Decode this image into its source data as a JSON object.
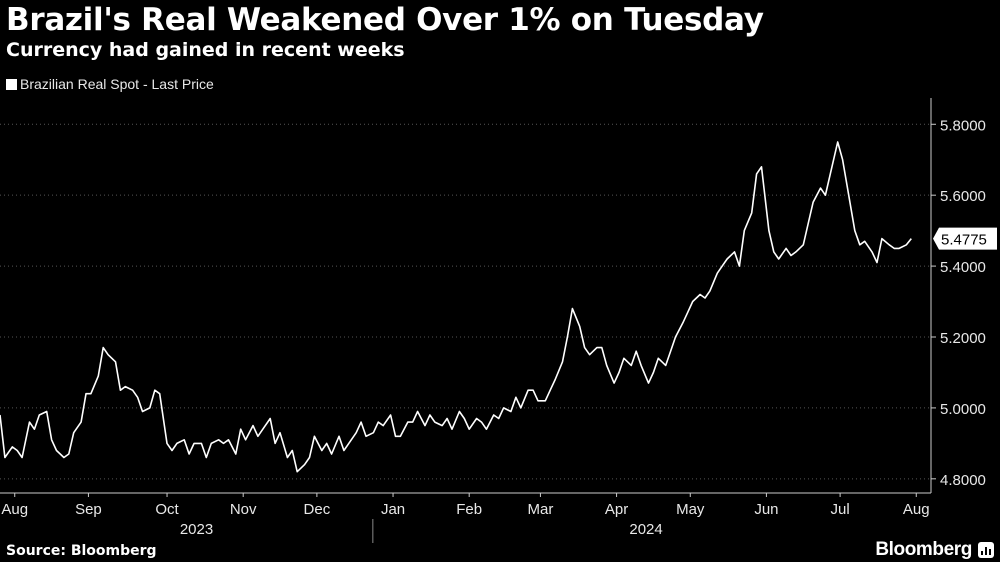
{
  "header": {
    "title": "Brazil's Real Weakened Over 1% on Tuesday",
    "subtitle": "Currency had gained in recent weeks"
  },
  "legend": {
    "label": "Brazilian Real Spot - Last Price"
  },
  "footer": {
    "source": "Source: Bloomberg",
    "brand": "Bloomberg"
  },
  "colors": {
    "background": "#000000",
    "line": "#ffffff",
    "grid": "#555555"
  },
  "chart_data": {
    "type": "line",
    "series": [
      {
        "name": "Brazilian Real Spot - Last Price",
        "x": [
          "2023-08-01",
          "2023-08-03",
          "2023-08-06",
          "2023-08-08",
          "2023-08-10",
          "2023-08-13",
          "2023-08-15",
          "2023-08-17",
          "2023-08-20",
          "2023-08-22",
          "2023-08-24",
          "2023-08-27",
          "2023-08-29",
          "2023-08-31",
          "2023-09-03",
          "2023-09-05",
          "2023-09-07",
          "2023-09-10",
          "2023-09-12",
          "2023-09-14",
          "2023-09-17",
          "2023-09-19",
          "2023-09-21",
          "2023-09-24",
          "2023-09-26",
          "2023-09-28",
          "2023-10-01",
          "2023-10-03",
          "2023-10-05",
          "2023-10-08",
          "2023-10-10",
          "2023-10-12",
          "2023-10-15",
          "2023-10-17",
          "2023-10-19",
          "2023-10-22",
          "2023-10-24",
          "2023-10-26",
          "2023-10-29",
          "2023-10-31",
          "2023-11-02",
          "2023-11-05",
          "2023-11-07",
          "2023-11-09",
          "2023-11-12",
          "2023-11-14",
          "2023-11-16",
          "2023-11-19",
          "2023-11-21",
          "2023-11-23",
          "2023-11-26",
          "2023-11-28",
          "2023-11-30",
          "2023-12-03",
          "2023-12-05",
          "2023-12-07",
          "2023-12-10",
          "2023-12-12",
          "2023-12-14",
          "2023-12-17",
          "2023-12-19",
          "2023-12-21",
          "2023-12-24",
          "2023-12-26",
          "2023-12-28",
          "2023-12-31",
          "2024-01-02",
          "2024-01-04",
          "2024-01-07",
          "2024-01-09",
          "2024-01-11",
          "2024-01-14",
          "2024-01-16",
          "2024-01-18",
          "2024-01-21",
          "2024-01-23",
          "2024-01-25",
          "2024-01-28",
          "2024-01-30",
          "2024-02-01",
          "2024-02-04",
          "2024-02-06",
          "2024-02-08",
          "2024-02-11",
          "2024-02-13",
          "2024-02-15",
          "2024-02-18",
          "2024-02-20",
          "2024-02-22",
          "2024-02-25",
          "2024-02-27",
          "2024-02-29",
          "2024-03-03",
          "2024-03-05",
          "2024-03-07",
          "2024-03-10",
          "2024-03-12",
          "2024-03-14",
          "2024-03-17",
          "2024-03-19",
          "2024-03-21",
          "2024-03-24",
          "2024-03-26",
          "2024-03-28",
          "2024-03-31",
          "2024-04-02",
          "2024-04-04",
          "2024-04-07",
          "2024-04-09",
          "2024-04-11",
          "2024-04-14",
          "2024-04-16",
          "2024-04-18",
          "2024-04-21",
          "2024-04-23",
          "2024-04-25",
          "2024-04-28",
          "2024-04-30",
          "2024-05-02",
          "2024-05-05",
          "2024-05-07",
          "2024-05-09",
          "2024-05-12",
          "2024-05-14",
          "2024-05-16",
          "2024-05-19",
          "2024-05-21",
          "2024-05-23",
          "2024-05-26",
          "2024-05-28",
          "2024-05-30",
          "2024-06-02",
          "2024-06-04",
          "2024-06-06",
          "2024-06-09",
          "2024-06-11",
          "2024-06-13",
          "2024-06-16",
          "2024-06-18",
          "2024-06-20",
          "2024-06-23",
          "2024-06-25",
          "2024-06-27",
          "2024-06-30",
          "2024-07-02",
          "2024-07-04",
          "2024-07-07",
          "2024-07-09",
          "2024-07-11",
          "2024-07-14",
          "2024-07-16",
          "2024-07-18",
          "2024-07-21",
          "2024-07-23",
          "2024-07-25",
          "2024-07-28",
          "2024-07-30",
          "2024-08-01",
          "2024-08-04",
          "2024-08-06"
        ],
        "y": [
          4.98,
          4.86,
          4.89,
          4.88,
          4.86,
          4.96,
          4.94,
          4.98,
          4.99,
          4.91,
          4.88,
          4.86,
          4.87,
          4.93,
          4.96,
          5.04,
          5.04,
          5.09,
          5.17,
          5.15,
          5.13,
          5.05,
          5.06,
          5.05,
          5.03,
          4.99,
          5.0,
          5.05,
          5.04,
          4.9,
          4.88,
          4.9,
          4.91,
          4.87,
          4.9,
          4.9,
          4.86,
          4.9,
          4.91,
          4.9,
          4.91,
          4.87,
          4.94,
          4.91,
          4.95,
          4.92,
          4.94,
          4.97,
          4.9,
          4.93,
          4.86,
          4.88,
          4.82,
          4.84,
          4.86,
          4.92,
          4.88,
          4.9,
          4.87,
          4.92,
          4.88,
          4.9,
          4.93,
          4.96,
          4.92,
          4.93,
          4.96,
          4.95,
          4.98,
          4.92,
          4.92,
          4.96,
          4.96,
          4.99,
          4.95,
          4.98,
          4.96,
          4.95,
          4.97,
          4.94,
          4.99,
          4.97,
          4.94,
          4.97,
          4.96,
          4.94,
          4.98,
          4.97,
          5.0,
          4.99,
          5.03,
          5.0,
          5.05,
          5.05,
          5.02,
          5.02,
          5.05,
          5.08,
          5.13,
          5.2,
          5.28,
          5.23,
          5.17,
          5.15,
          5.17,
          5.17,
          5.12,
          5.07,
          5.1,
          5.14,
          5.12,
          5.16,
          5.12,
          5.07,
          5.1,
          5.14,
          5.12,
          5.16,
          5.2,
          5.24,
          5.27,
          5.3,
          5.32,
          5.31,
          5.33,
          5.38,
          5.4,
          5.42,
          5.44,
          5.4,
          5.5,
          5.55,
          5.66,
          5.68,
          5.5,
          5.44,
          5.42,
          5.45,
          5.43,
          5.44,
          5.46,
          5.52,
          5.58,
          5.62,
          5.6,
          5.66,
          5.75,
          5.7,
          5.62,
          5.5,
          5.46,
          5.47,
          5.44,
          5.41,
          5.4775,
          5.46,
          5.45,
          5.45,
          5.46,
          5.4775
        ]
      }
    ],
    "last_value_label": "5.4775",
    "y_ticks": [
      "5.8000",
      "5.6000",
      "5.4000",
      "5.2000",
      "5.0000",
      "4.8000"
    ],
    "y_tick_values": [
      5.8,
      5.6,
      5.4,
      5.2,
      5.0,
      4.8
    ],
    "ylim": [
      4.76,
      5.86
    ],
    "y_axis_side": "right",
    "month_ticks": [
      {
        "label": "Aug",
        "date": "2023-08-07"
      },
      {
        "label": "Sep",
        "date": "2023-09-06"
      },
      {
        "label": "Oct",
        "date": "2023-10-08"
      },
      {
        "label": "Nov",
        "date": "2023-11-08"
      },
      {
        "label": "Dec",
        "date": "2023-12-08"
      },
      {
        "label": "Jan",
        "date": "2024-01-08"
      },
      {
        "label": "Feb",
        "date": "2024-02-08"
      },
      {
        "label": "Mar",
        "date": "2024-03-08"
      },
      {
        "label": "Apr",
        "date": "2024-04-08"
      },
      {
        "label": "May",
        "date": "2024-05-08"
      },
      {
        "label": "Jun",
        "date": "2024-06-08"
      },
      {
        "label": "Jul",
        "date": "2024-07-08"
      },
      {
        "label": "Aug",
        "date": "2024-08-08"
      }
    ],
    "year_labels": [
      {
        "label": "2023",
        "date": "2023-10-20"
      },
      {
        "label": "2024",
        "date": "2024-04-20"
      }
    ],
    "year_divider_date": "2024-01-01",
    "x_range": [
      "2023-08-01",
      "2024-08-14"
    ],
    "grid": "horizontal-dotted",
    "legend_position": "top-left"
  }
}
